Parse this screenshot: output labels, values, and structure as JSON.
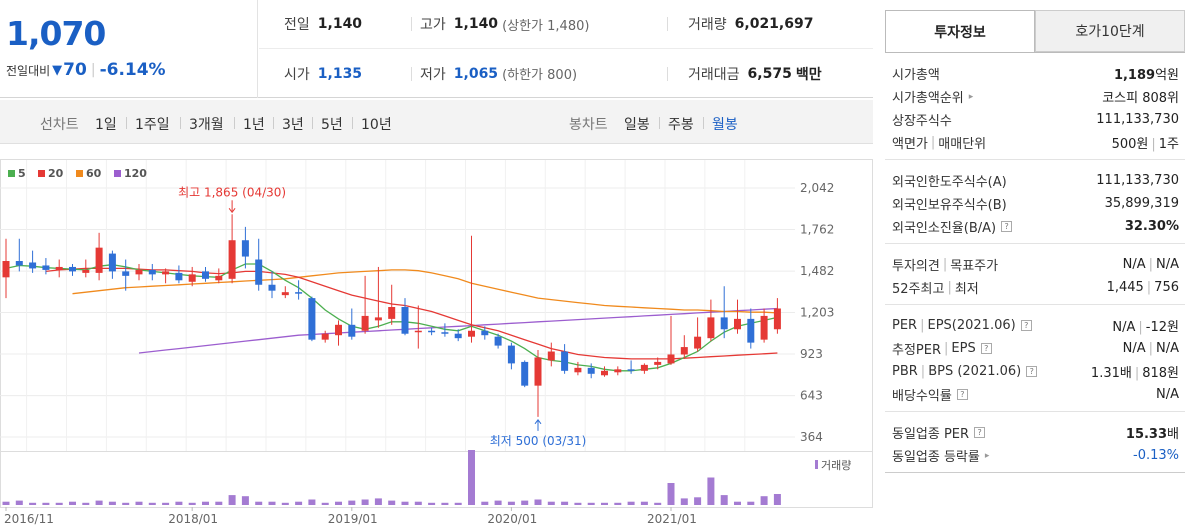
{
  "summary": {
    "price": "1,070",
    "change_label": "전일대비",
    "change_amount": "70",
    "change_percent": "-6.14%",
    "prev_close_label": "전일",
    "prev_close": "1,140",
    "high_label": "고가",
    "high": "1,140",
    "upper_limit": "(상한가 1,480)",
    "volume_label": "거래량",
    "volume": "6,021,697",
    "open_label": "시가",
    "open": "1,135",
    "low_label": "저가",
    "low": "1,065",
    "lower_limit": "(하한가 800)",
    "value_label": "거래대금",
    "value": "6,575",
    "value_unit": "백만"
  },
  "chart_tabs": {
    "line_head": "선차트",
    "line_items": [
      "1일",
      "1주일",
      "3개월",
      "1년",
      "3년",
      "5년",
      "10년"
    ],
    "candle_head": "봉차트",
    "candle_items": [
      "일봉",
      "주봉",
      "월봉"
    ],
    "candle_selected": 2
  },
  "chart_data": {
    "type": "candlestick",
    "legend": [
      {
        "name": "5",
        "color": "#4caf50"
      },
      {
        "name": "20",
        "color": "#e53935"
      },
      {
        "name": "60",
        "color": "#f08a1d"
      },
      {
        "name": "120",
        "color": "#9c5ecf"
      }
    ],
    "y_ticks": [
      2042,
      1762,
      1482,
      1203,
      923,
      643,
      364
    ],
    "y_tick_labels": [
      "2,042",
      "1,762",
      "1,482",
      "1,203",
      "923",
      "643",
      "364"
    ],
    "ylim": [
      364,
      2042
    ],
    "x_tick_labels": [
      "2016/11",
      "2018/01",
      "2019/01",
      "2020/01",
      "2021/01"
    ],
    "x_tick_index": [
      0,
      14,
      26,
      38,
      50
    ],
    "high_annotation": "최고 1,865 (04/30)",
    "high_index": 17,
    "high_value": 1865,
    "low_annotation": "최저 500 (03/31)",
    "low_index": 40,
    "low_value": 500,
    "volume_label": "거래량",
    "candles": [
      {
        "o": 1440,
        "h": 1700,
        "l": 1300,
        "c": 1550
      },
      {
        "o": 1550,
        "h": 1700,
        "l": 1480,
        "c": 1520
      },
      {
        "o": 1540,
        "h": 1620,
        "l": 1470,
        "c": 1500
      },
      {
        "o": 1520,
        "h": 1570,
        "l": 1460,
        "c": 1490
      },
      {
        "o": 1490,
        "h": 1560,
        "l": 1440,
        "c": 1510
      },
      {
        "o": 1510,
        "h": 1530,
        "l": 1450,
        "c": 1480
      },
      {
        "o": 1470,
        "h": 1560,
        "l": 1440,
        "c": 1490
      },
      {
        "o": 1470,
        "h": 1740,
        "l": 1420,
        "c": 1640
      },
      {
        "o": 1600,
        "h": 1620,
        "l": 1430,
        "c": 1480
      },
      {
        "o": 1480,
        "h": 1560,
        "l": 1350,
        "c": 1450
      },
      {
        "o": 1460,
        "h": 1530,
        "l": 1420,
        "c": 1490
      },
      {
        "o": 1490,
        "h": 1530,
        "l": 1420,
        "c": 1460
      },
      {
        "o": 1460,
        "h": 1500,
        "l": 1400,
        "c": 1480
      },
      {
        "o": 1470,
        "h": 1520,
        "l": 1400,
        "c": 1420
      },
      {
        "o": 1410,
        "h": 1510,
        "l": 1380,
        "c": 1460
      },
      {
        "o": 1480,
        "h": 1510,
        "l": 1410,
        "c": 1430
      },
      {
        "o": 1420,
        "h": 1500,
        "l": 1400,
        "c": 1450
      },
      {
        "o": 1430,
        "h": 1865,
        "l": 1400,
        "c": 1690
      },
      {
        "o": 1690,
        "h": 1780,
        "l": 1500,
        "c": 1580
      },
      {
        "o": 1560,
        "h": 1700,
        "l": 1350,
        "c": 1390
      },
      {
        "o": 1390,
        "h": 1480,
        "l": 1300,
        "c": 1350
      },
      {
        "o": 1320,
        "h": 1380,
        "l": 1300,
        "c": 1340
      },
      {
        "o": 1340,
        "h": 1420,
        "l": 1290,
        "c": 1330
      },
      {
        "o": 1300,
        "h": 1310,
        "l": 1010,
        "c": 1020
      },
      {
        "o": 1020,
        "h": 1080,
        "l": 1000,
        "c": 1060
      },
      {
        "o": 1050,
        "h": 1150,
        "l": 980,
        "c": 1120
      },
      {
        "o": 1120,
        "h": 1230,
        "l": 1020,
        "c": 1040
      },
      {
        "o": 1080,
        "h": 1450,
        "l": 1060,
        "c": 1180
      },
      {
        "o": 1150,
        "h": 1510,
        "l": 1100,
        "c": 1170
      },
      {
        "o": 1160,
        "h": 1390,
        "l": 1120,
        "c": 1240
      },
      {
        "o": 1240,
        "h": 1300,
        "l": 1050,
        "c": 1060
      },
      {
        "o": 1070,
        "h": 1250,
        "l": 960,
        "c": 1080
      },
      {
        "o": 1080,
        "h": 1100,
        "l": 1050,
        "c": 1070
      },
      {
        "o": 1070,
        "h": 1130,
        "l": 1040,
        "c": 1060
      },
      {
        "o": 1060,
        "h": 1090,
        "l": 1010,
        "c": 1030
      },
      {
        "o": 1040,
        "h": 1720,
        "l": 1000,
        "c": 1080
      },
      {
        "o": 1080,
        "h": 1110,
        "l": 1020,
        "c": 1050
      },
      {
        "o": 1040,
        "h": 1060,
        "l": 960,
        "c": 980
      },
      {
        "o": 980,
        "h": 1000,
        "l": 820,
        "c": 860
      },
      {
        "o": 870,
        "h": 880,
        "l": 700,
        "c": 710
      },
      {
        "o": 710,
        "h": 950,
        "l": 500,
        "c": 900
      },
      {
        "o": 880,
        "h": 1000,
        "l": 840,
        "c": 940
      },
      {
        "o": 940,
        "h": 990,
        "l": 790,
        "c": 810
      },
      {
        "o": 800,
        "h": 870,
        "l": 780,
        "c": 830
      },
      {
        "o": 830,
        "h": 860,
        "l": 760,
        "c": 790
      },
      {
        "o": 780,
        "h": 840,
        "l": 770,
        "c": 810
      },
      {
        "o": 800,
        "h": 840,
        "l": 780,
        "c": 820
      },
      {
        "o": 820,
        "h": 880,
        "l": 790,
        "c": 810
      },
      {
        "o": 810,
        "h": 860,
        "l": 790,
        "c": 850
      },
      {
        "o": 850,
        "h": 900,
        "l": 820,
        "c": 870
      },
      {
        "o": 860,
        "h": 1180,
        "l": 850,
        "c": 920
      },
      {
        "o": 920,
        "h": 1050,
        "l": 890,
        "c": 970
      },
      {
        "o": 960,
        "h": 1170,
        "l": 940,
        "c": 1040
      },
      {
        "o": 1030,
        "h": 1290,
        "l": 1010,
        "c": 1170
      },
      {
        "o": 1170,
        "h": 1380,
        "l": 1030,
        "c": 1090
      },
      {
        "o": 1090,
        "h": 1290,
        "l": 1060,
        "c": 1160
      },
      {
        "o": 1160,
        "h": 1230,
        "l": 960,
        "c": 1000
      },
      {
        "o": 1020,
        "h": 1230,
        "l": 1000,
        "c": 1180
      },
      {
        "o": 1090,
        "h": 1300,
        "l": 1060,
        "c": 1230
      }
    ],
    "ma5": [
      1500,
      1520,
      1515,
      1505,
      1500,
      1495,
      1490,
      1515,
      1525,
      1510,
      1490,
      1480,
      1470,
      1460,
      1450,
      1445,
      1440,
      1490,
      1530,
      1530,
      1480,
      1420,
      1370,
      1300,
      1220,
      1160,
      1110,
      1090,
      1110,
      1140,
      1140,
      1130,
      1110,
      1090,
      1080,
      1110,
      1080,
      1050,
      1010,
      960,
      900,
      880,
      870,
      850,
      840,
      820,
      810,
      810,
      820,
      830,
      860,
      900,
      940,
      1010,
      1070,
      1110,
      1130,
      1150,
      1170
    ],
    "ma20": [
      null,
      null,
      null,
      1480,
      1490,
      1495,
      1500,
      1500,
      1500,
      1500,
      1495,
      1490,
      1490,
      1485,
      1480,
      1470,
      1465,
      1470,
      1480,
      1480,
      1470,
      1460,
      1440,
      1410,
      1380,
      1350,
      1320,
      1300,
      1280,
      1260,
      1250,
      1230,
      1210,
      1180,
      1150,
      1120,
      1100,
      1080,
      1050,
      1020,
      990,
      960,
      940,
      920,
      910,
      900,
      895,
      890,
      890,
      890,
      890,
      895,
      900,
      905,
      910,
      915,
      920,
      925,
      930
    ],
    "ma60": [
      null,
      null,
      null,
      null,
      null,
      1330,
      1340,
      1350,
      1360,
      1370,
      1375,
      1380,
      1385,
      1390,
      1395,
      1400,
      1405,
      1410,
      1415,
      1420,
      1425,
      1430,
      1440,
      1450,
      1460,
      1470,
      1475,
      1480,
      1485,
      1490,
      1490,
      1485,
      1470,
      1450,
      1430,
      1400,
      1380,
      1360,
      1340,
      1320,
      1300,
      1290,
      1280,
      1270,
      1260,
      1250,
      1245,
      1240,
      1235,
      1230,
      1225,
      1220,
      1220,
      1215,
      1210,
      1210,
      1205,
      1205,
      1200
    ],
    "ma120": [
      null,
      null,
      null,
      null,
      null,
      null,
      null,
      null,
      null,
      null,
      930,
      940,
      950,
      960,
      970,
      980,
      990,
      1000,
      1010,
      1020,
      1030,
      1040,
      1050,
      1055,
      1060,
      1065,
      1070,
      1075,
      1080,
      1085,
      1090,
      1095,
      1100,
      1105,
      1110,
      1115,
      1120,
      1125,
      1130,
      1135,
      1140,
      1145,
      1150,
      1155,
      1160,
      1165,
      1170,
      1175,
      1180,
      1185,
      1190,
      1195,
      1200,
      1205,
      1210,
      1215,
      1220,
      1225,
      1230
    ],
    "volume": [
      3,
      4,
      2,
      2,
      2,
      3,
      2,
      4,
      3,
      2,
      3,
      2,
      2,
      3,
      2,
      3,
      3,
      9,
      8,
      3,
      3,
      2,
      3,
      5,
      2,
      3,
      4,
      5,
      6,
      4,
      3,
      3,
      2,
      2,
      2,
      50,
      3,
      4,
      3,
      4,
      5,
      3,
      3,
      2,
      2,
      2,
      2,
      3,
      3,
      2,
      20,
      6,
      7,
      25,
      9,
      3,
      3,
      8,
      10
    ]
  },
  "panel": {
    "tab_invest": "투자정보",
    "tab_quote": "호가10단계",
    "groups": [
      [
        {
          "label": "시가총액",
          "value_bold": "1,189",
          "value": "억원"
        },
        {
          "label": "시가총액순위",
          "arrow": true,
          "value": "코스피 808위"
        },
        {
          "label": "상장주식수",
          "value": "111,133,730"
        },
        {
          "label": "액면가",
          "label2": "매매단위",
          "value": "500원",
          "value2": "1주"
        }
      ],
      [
        {
          "label": "외국인한도주식수(A)",
          "value": "111,133,730"
        },
        {
          "label": "외국인보유주식수(B)",
          "value": "35,899,319"
        },
        {
          "label": "외국인소진율(B/A)",
          "help": true,
          "value_bold": "32.30%",
          "value": ""
        }
      ],
      [
        {
          "label": "투자의견",
          "label2": "목표주가",
          "value": "N/A",
          "value2": "N/A"
        },
        {
          "label": "52주최고",
          "label2": "최저",
          "value": "1,445",
          "value2": "756"
        }
      ],
      [
        {
          "label": "PER",
          "label2": "EPS(2021.06)",
          "help": true,
          "value": "N/A",
          "value2": "-12원"
        },
        {
          "label": "추정PER",
          "label2": "EPS",
          "help": true,
          "value": "N/A",
          "value2": "N/A"
        },
        {
          "label": "PBR",
          "label2": "BPS (2021.06)",
          "help": true,
          "value": "1.31배",
          "value2": "818원"
        },
        {
          "label": "배당수익률",
          "help": true,
          "value": "N/A"
        }
      ],
      [
        {
          "label": "동일업종 PER",
          "help": true,
          "value_bold": "15.33",
          "value": "배"
        },
        {
          "label": "동일업종 등락률",
          "arrow": true,
          "value": "-0.13%",
          "blue": true
        }
      ]
    ]
  },
  "colors": {
    "up": "#e53935",
    "down": "#2f6fd6",
    "accent": "#1a5fc4"
  }
}
